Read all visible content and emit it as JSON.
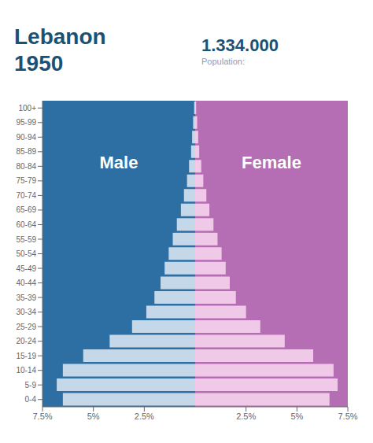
{
  "chart_data": {
    "type": "bar",
    "orientation": "horizontal",
    "title": "Lebanon",
    "subtitle": "1950",
    "annotations": [
      "Population:",
      "1.334.000"
    ],
    "categories": [
      "0-4",
      "5-9",
      "10-14",
      "15-19",
      "20-24",
      "25-29",
      "30-34",
      "35-39",
      "40-44",
      "45-49",
      "50-54",
      "55-59",
      "60-64",
      "65-69",
      "70-74",
      "75-79",
      "80-84",
      "85-89",
      "90-94",
      "95-99",
      "100+"
    ],
    "series": [
      {
        "name": "Male",
        "color": "#c5d8ea",
        "values": [
          6.5,
          6.8,
          6.5,
          5.5,
          4.2,
          3.1,
          2.4,
          2.0,
          1.7,
          1.5,
          1.3,
          1.1,
          0.9,
          0.7,
          0.55,
          0.4,
          0.3,
          0.2,
          0.15,
          0.1,
          0.05
        ]
      },
      {
        "name": "Female",
        "color": "#f0c8e8",
        "values": [
          6.6,
          7.0,
          6.8,
          5.8,
          4.4,
          3.2,
          2.5,
          2.0,
          1.7,
          1.5,
          1.3,
          1.1,
          0.9,
          0.7,
          0.55,
          0.4,
          0.3,
          0.2,
          0.15,
          0.1,
          0.05
        ]
      }
    ],
    "xlim": [
      0,
      7.5
    ],
    "xticks": [
      {
        "value": 2.5,
        "label": "2.5%"
      },
      {
        "value": 5,
        "label": "5%"
      },
      {
        "value": 7.5,
        "label": "7.5%"
      }
    ]
  }
}
